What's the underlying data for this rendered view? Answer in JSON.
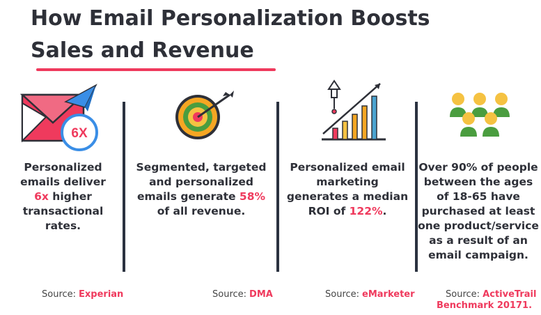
{
  "title_line1": "How Email Personalization Boosts",
  "title_line2": "Sales and Revenue",
  "colors": {
    "accent": "#ef3a5d",
    "text": "#2e3038",
    "divider": "#2b3240"
  },
  "columns": [
    {
      "icon": "email-envelope-icon",
      "badge": "6X",
      "text_pre": "Personalized emails deliver",
      "highlight": "6x",
      "text_post": "higher transactional rates.",
      "source_label": "Source:",
      "source_name": "Experian"
    },
    {
      "icon": "target-arrow-icon",
      "text_pre": "Segmented, targeted and personalized emails generate",
      "highlight": "58%",
      "text_post": "of all revenue.",
      "source_label": "Source:",
      "source_name": "DMA"
    },
    {
      "icon": "growth-chart-icon",
      "text_pre": "Personalized email marketing generates a median ROI of",
      "highlight": "122%",
      "text_post": ".",
      "source_label": "Source:",
      "source_name": "eMarketer"
    },
    {
      "icon": "people-group-icon",
      "text": "Over 90% of people between the ages of 18-65 have purchased at least one product/service as a result of an email campaign.",
      "source_label": "Source:",
      "source_name_line1": "ActiveTrail",
      "source_name_line2": "Benchmark 20171."
    }
  ]
}
